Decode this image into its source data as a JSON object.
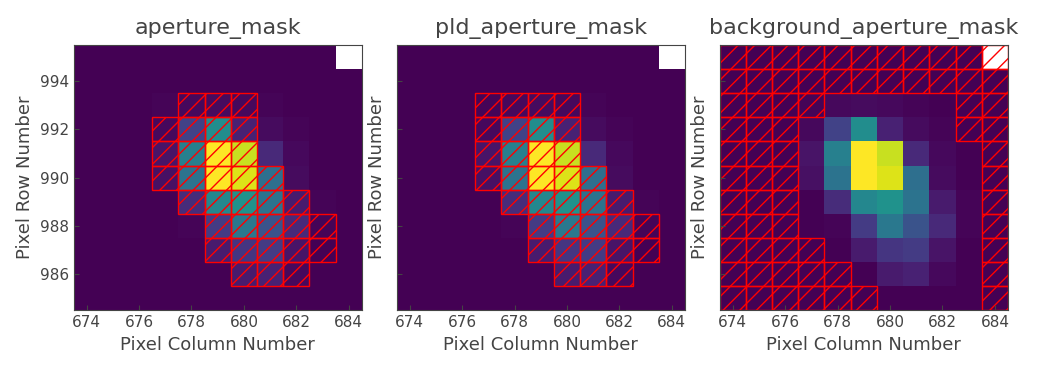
{
  "chart_data": [
    {
      "type": "heatmap",
      "title": "aperture_mask",
      "x_label": "Pixel Column Number",
      "y_label": "Pixel Row Number",
      "x": [
        674,
        675,
        676,
        677,
        678,
        679,
        680,
        681,
        682,
        683,
        684
      ],
      "y": [
        985,
        986,
        987,
        988,
        989,
        990,
        991,
        992,
        993,
        994,
        995
      ],
      "xlim": [
        673.5,
        684.5
      ],
      "ylim": [
        984.5,
        995.5
      ],
      "xticks": [
        674,
        676,
        678,
        680,
        682,
        684
      ],
      "yticks": [
        986,
        988,
        990,
        992,
        994
      ],
      "color": "red",
      "tick_labels": true,
      "cells": [
        [
          3,
          3,
          3,
          3,
          3,
          3,
          3,
          3,
          3,
          3,
          3
        ],
        [
          3,
          3,
          3,
          3,
          3,
          3,
          10,
          12,
          5,
          3,
          3
        ],
        [
          3,
          3,
          3,
          3,
          3,
          10,
          18,
          20,
          8,
          3,
          3
        ],
        [
          3,
          3,
          3,
          3,
          4,
          20,
          42,
          28,
          14,
          4,
          3
        ],
        [
          3,
          3,
          3,
          3,
          15,
          48,
          52,
          40,
          10,
          4,
          3
        ],
        [
          3,
          3,
          3,
          7,
          40,
          100,
          95,
          38,
          6,
          3,
          3
        ],
        [
          3,
          3,
          3,
          8,
          45,
          100,
          92,
          14,
          5,
          3,
          3
        ],
        [
          3,
          3,
          3,
          5,
          22,
          50,
          12,
          6,
          4,
          3,
          3
        ],
        [
          3,
          3,
          3,
          4,
          5,
          6,
          5,
          4,
          3,
          3,
          3
        ],
        [
          3,
          3,
          3,
          3,
          3,
          3,
          3,
          3,
          3,
          3,
          3
        ],
        [
          3,
          3,
          3,
          3,
          3,
          3,
          3,
          3,
          3,
          3,
          null
        ]
      ],
      "mask": [
        [
          0,
          0,
          0,
          0,
          0,
          0,
          0,
          0,
          0,
          0,
          0
        ],
        [
          0,
          0,
          0,
          0,
          0,
          0,
          1,
          1,
          1,
          0,
          0
        ],
        [
          0,
          0,
          0,
          0,
          0,
          1,
          1,
          1,
          1,
          1,
          0
        ],
        [
          0,
          0,
          0,
          0,
          0,
          1,
          1,
          1,
          1,
          1,
          0
        ],
        [
          0,
          0,
          0,
          0,
          1,
          1,
          1,
          1,
          1,
          0,
          0
        ],
        [
          0,
          0,
          0,
          1,
          1,
          1,
          1,
          1,
          0,
          0,
          0
        ],
        [
          0,
          0,
          0,
          1,
          1,
          1,
          1,
          0,
          0,
          0,
          0
        ],
        [
          0,
          0,
          0,
          1,
          1,
          1,
          1,
          0,
          0,
          0,
          0
        ],
        [
          0,
          0,
          0,
          0,
          1,
          1,
          1,
          0,
          0,
          0,
          0
        ],
        [
          0,
          0,
          0,
          0,
          0,
          0,
          0,
          0,
          0,
          0,
          0
        ],
        [
          0,
          0,
          0,
          0,
          0,
          0,
          0,
          0,
          0,
          0,
          0
        ]
      ]
    },
    {
      "type": "heatmap",
      "title": "pld_aperture_mask",
      "x_label": "Pixel Column Number",
      "y_label": "Pixel Row Number",
      "x": [
        674,
        675,
        676,
        677,
        678,
        679,
        680,
        681,
        682,
        683,
        684
      ],
      "y": [
        985,
        986,
        987,
        988,
        989,
        990,
        991,
        992,
        993,
        994,
        995
      ],
      "xlim": [
        673.5,
        684.5
      ],
      "ylim": [
        984.5,
        995.5
      ],
      "xticks": [
        674,
        676,
        678,
        680,
        682,
        684
      ],
      "yticks": [
        986,
        988,
        990,
        992,
        994
      ],
      "color": "red",
      "tick_labels": "x",
      "cells": [
        [
          3,
          3,
          3,
          3,
          3,
          3,
          3,
          3,
          3,
          3,
          3
        ],
        [
          3,
          3,
          3,
          3,
          3,
          3,
          10,
          12,
          5,
          3,
          3
        ],
        [
          3,
          3,
          3,
          3,
          3,
          10,
          18,
          20,
          8,
          3,
          3
        ],
        [
          3,
          3,
          3,
          3,
          4,
          20,
          42,
          28,
          14,
          4,
          3
        ],
        [
          3,
          3,
          3,
          3,
          15,
          48,
          52,
          40,
          10,
          4,
          3
        ],
        [
          3,
          3,
          3,
          7,
          40,
          100,
          95,
          38,
          6,
          3,
          3
        ],
        [
          3,
          3,
          3,
          8,
          45,
          100,
          92,
          14,
          5,
          3,
          3
        ],
        [
          3,
          3,
          3,
          5,
          22,
          50,
          12,
          6,
          4,
          3,
          3
        ],
        [
          3,
          3,
          3,
          4,
          5,
          6,
          5,
          4,
          3,
          3,
          3
        ],
        [
          3,
          3,
          3,
          3,
          3,
          3,
          3,
          3,
          3,
          3,
          3
        ],
        [
          3,
          3,
          3,
          3,
          3,
          3,
          3,
          3,
          3,
          3,
          null
        ]
      ],
      "mask": [
        [
          0,
          0,
          0,
          0,
          0,
          0,
          0,
          0,
          0,
          0,
          0
        ],
        [
          0,
          0,
          0,
          0,
          0,
          0,
          1,
          1,
          1,
          0,
          0
        ],
        [
          0,
          0,
          0,
          0,
          0,
          1,
          1,
          1,
          1,
          1,
          0
        ],
        [
          0,
          0,
          0,
          0,
          0,
          1,
          1,
          1,
          1,
          1,
          0
        ],
        [
          0,
          0,
          0,
          0,
          1,
          1,
          1,
          1,
          1,
          0,
          0
        ],
        [
          0,
          0,
          0,
          1,
          1,
          1,
          1,
          1,
          0,
          0,
          0
        ],
        [
          0,
          0,
          0,
          1,
          1,
          1,
          1,
          0,
          0,
          0,
          0
        ],
        [
          0,
          0,
          0,
          1,
          1,
          1,
          1,
          0,
          0,
          0,
          0
        ],
        [
          0,
          0,
          0,
          1,
          1,
          1,
          1,
          0,
          0,
          0,
          0
        ],
        [
          0,
          0,
          0,
          0,
          0,
          0,
          0,
          0,
          0,
          0,
          0
        ],
        [
          0,
          0,
          0,
          0,
          0,
          0,
          0,
          0,
          0,
          0,
          0
        ]
      ]
    },
    {
      "type": "heatmap",
      "title": "background_aperture_mask",
      "x_label": "Pixel Column Number",
      "y_label": "Pixel Row Number",
      "x": [
        674,
        675,
        676,
        677,
        678,
        679,
        680,
        681,
        682,
        683,
        684
      ],
      "y": [
        985,
        986,
        987,
        988,
        989,
        990,
        991,
        992,
        993,
        994,
        995
      ],
      "xlim": [
        673.5,
        684.5
      ],
      "ylim": [
        984.5,
        995.5
      ],
      "xticks": [
        674,
        676,
        678,
        680,
        682,
        684
      ],
      "yticks": [
        986,
        988,
        990,
        992,
        994
      ],
      "color": "red",
      "tick_labels": "x",
      "cells": [
        [
          3,
          3,
          3,
          3,
          3,
          3,
          3,
          3,
          3,
          3,
          3
        ],
        [
          3,
          3,
          3,
          3,
          3,
          3,
          10,
          12,
          5,
          3,
          3
        ],
        [
          3,
          3,
          3,
          3,
          3,
          10,
          18,
          20,
          8,
          3,
          3
        ],
        [
          3,
          3,
          3,
          3,
          4,
          20,
          42,
          28,
          14,
          4,
          3
        ],
        [
          3,
          3,
          3,
          3,
          15,
          48,
          52,
          40,
          10,
          4,
          3
        ],
        [
          3,
          3,
          3,
          7,
          40,
          100,
          95,
          38,
          6,
          3,
          3
        ],
        [
          3,
          3,
          3,
          8,
          45,
          100,
          92,
          14,
          5,
          3,
          3
        ],
        [
          3,
          3,
          3,
          5,
          22,
          50,
          12,
          6,
          4,
          3,
          3
        ],
        [
          3,
          3,
          3,
          4,
          5,
          6,
          5,
          4,
          3,
          3,
          3
        ],
        [
          3,
          3,
          3,
          3,
          3,
          3,
          3,
          3,
          3,
          3,
          3
        ],
        [
          3,
          3,
          3,
          3,
          3,
          3,
          3,
          3,
          3,
          3,
          null
        ]
      ],
      "mask": [
        [
          1,
          1,
          1,
          1,
          1,
          1,
          0,
          0,
          0,
          0,
          1
        ],
        [
          1,
          1,
          1,
          1,
          1,
          0,
          0,
          0,
          0,
          0,
          1
        ],
        [
          1,
          1,
          1,
          1,
          0,
          0,
          0,
          0,
          0,
          0,
          1
        ],
        [
          1,
          1,
          1,
          0,
          0,
          0,
          0,
          0,
          0,
          0,
          1
        ],
        [
          1,
          1,
          1,
          0,
          0,
          0,
          0,
          0,
          0,
          0,
          1
        ],
        [
          1,
          1,
          1,
          0,
          0,
          0,
          0,
          0,
          0,
          0,
          1
        ],
        [
          1,
          1,
          1,
          0,
          0,
          0,
          0,
          0,
          0,
          0,
          1
        ],
        [
          1,
          1,
          1,
          0,
          0,
          0,
          0,
          0,
          0,
          1,
          1
        ],
        [
          1,
          1,
          1,
          1,
          0,
          0,
          0,
          0,
          0,
          1,
          1
        ],
        [
          1,
          1,
          1,
          1,
          1,
          1,
          1,
          1,
          1,
          1,
          1
        ],
        [
          1,
          1,
          1,
          1,
          1,
          1,
          1,
          1,
          1,
          1,
          1
        ]
      ]
    }
  ]
}
